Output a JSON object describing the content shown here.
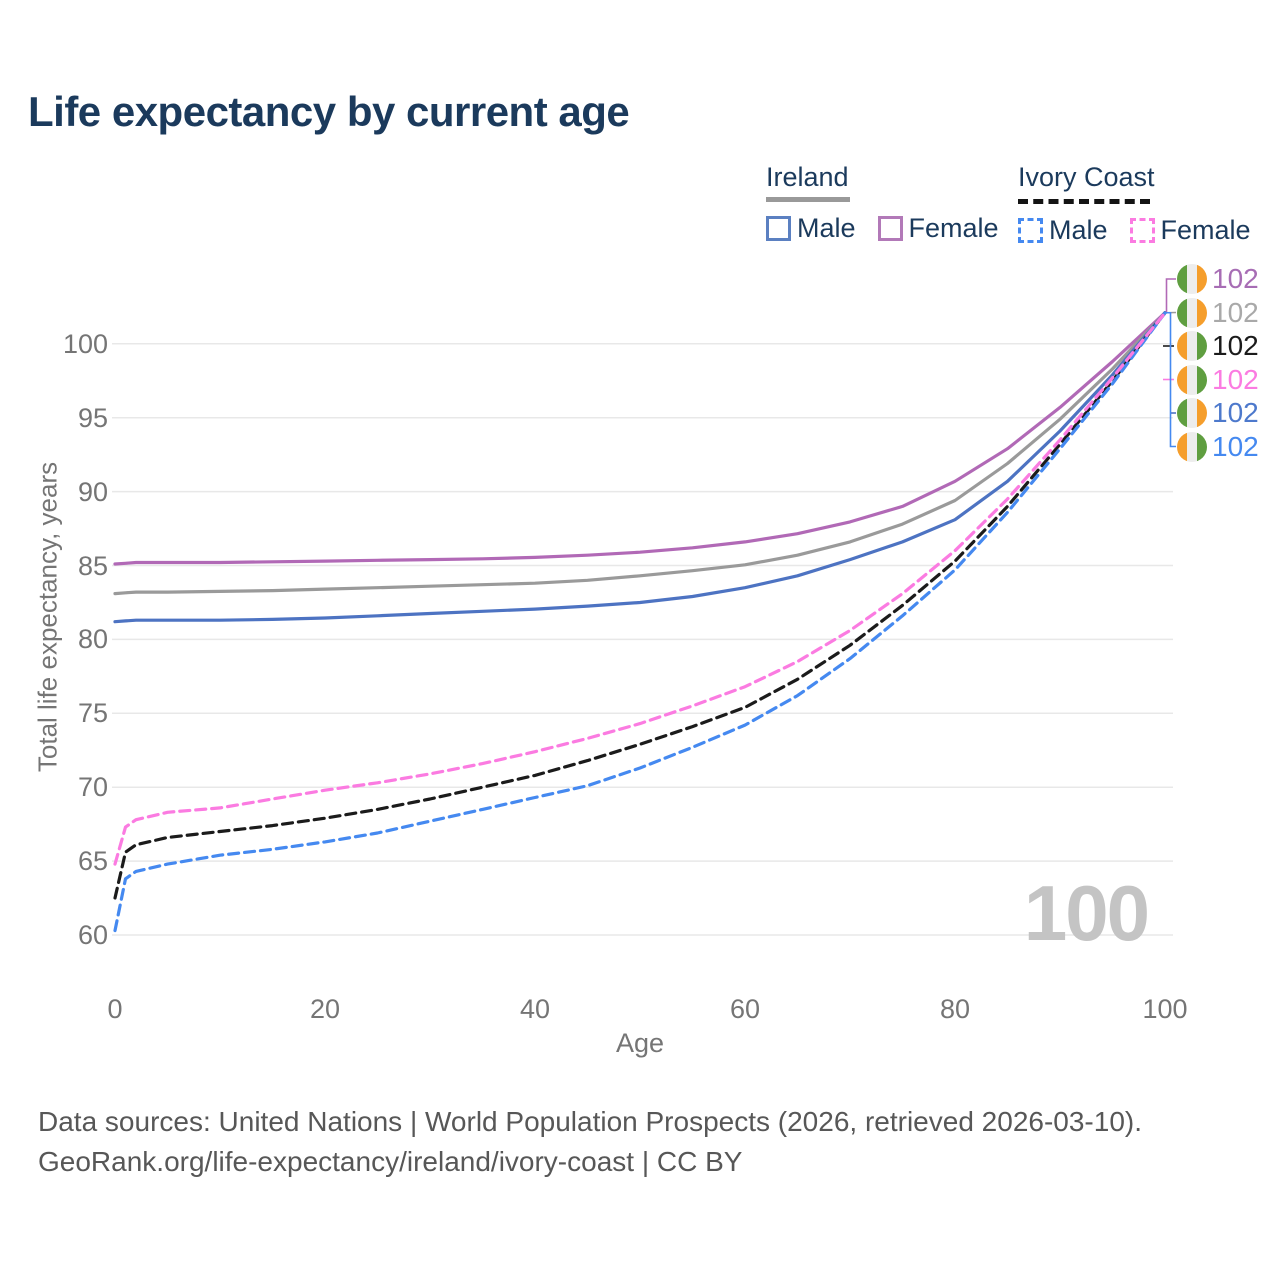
{
  "title": "Life expectancy by current age",
  "legend": {
    "groups": [
      {
        "label": "Ireland",
        "style": "solid",
        "items": [
          {
            "label": "Male"
          },
          {
            "label": "Female"
          }
        ]
      },
      {
        "label": "Ivory Coast",
        "style": "dashed",
        "items": [
          {
            "label": "Male"
          },
          {
            "label": "Female"
          }
        ]
      }
    ]
  },
  "y_axis": {
    "label": "Total life expectancy, years"
  },
  "x_axis": {
    "label": "Age"
  },
  "watermark": "100",
  "end_labels": [
    {
      "value": "102",
      "series": "Ireland Female",
      "flag": "ireland",
      "color": "#a76db4"
    },
    {
      "value": "102",
      "series": "Ireland",
      "flag": "ireland",
      "color": "#a9a9a9"
    },
    {
      "value": "102",
      "series": "Ivory Coast",
      "flag": "ivory-coast",
      "color": "#1b1b1b"
    },
    {
      "value": "102",
      "series": "Ivory Coast Female",
      "flag": "ivory-coast",
      "color": "#fb7be1"
    },
    {
      "value": "102",
      "series": "Ireland Male",
      "flag": "ireland",
      "color": "#4d79cc"
    },
    {
      "value": "102",
      "series": "Ivory Coast Male",
      "flag": "ivory-coast",
      "color": "#4589f0"
    }
  ],
  "footer": {
    "line1": "Data sources: United Nations | World Population Prospects (2026, retrieved 2026-03-10).",
    "line2": "GeoRank.org/life-expectancy/ireland/ivory-coast | CC BY"
  },
  "colors": {
    "title_text": "#1b3a5c",
    "axis_text": "#757575",
    "grid": "#e8e8e8",
    "watermark": "#c4c4c4",
    "ireland_male": "#4d73c2",
    "ireland_female": "#b169b6",
    "ireland_all": "#9a9a9a",
    "ivory_coast_male": "#4589f0",
    "ivory_coast_female": "#fb7be1",
    "ivory_coast_all": "#1b1b1b",
    "flag_green": "#5f9e40",
    "flag_orange": "#f59e2c"
  },
  "chart_data": {
    "type": "line",
    "title": "Life expectancy by current age",
    "xlabel": "Age",
    "ylabel": "Total life expectancy, years",
    "xlim": [
      0,
      100
    ],
    "ylim": [
      60,
      102.5
    ],
    "x_ticks": [
      0,
      20,
      40,
      60,
      80,
      100
    ],
    "y_ticks": [
      60,
      65,
      70,
      75,
      80,
      85,
      90,
      95,
      100
    ],
    "grid": "horizontal",
    "legend_position": "top-right",
    "x": [
      0,
      1,
      2,
      5,
      10,
      15,
      20,
      25,
      30,
      35,
      40,
      45,
      50,
      55,
      60,
      65,
      70,
      75,
      80,
      85,
      90,
      95,
      100
    ],
    "series": [
      {
        "name": "Ireland Female",
        "country": "Ireland",
        "sex": "Female",
        "color": "#b169b6",
        "dash": false,
        "values": [
          85.1,
          85.15,
          85.2,
          85.2,
          85.2,
          85.25,
          85.3,
          85.35,
          85.4,
          85.45,
          85.55,
          85.7,
          85.9,
          86.2,
          86.6,
          87.15,
          87.95,
          89.0,
          90.7,
          92.9,
          95.7,
          98.8,
          102.1
        ]
      },
      {
        "name": "Ireland",
        "country": "Ireland",
        "sex": "Both",
        "color": "#9a9a9a",
        "dash": false,
        "values": [
          83.1,
          83.15,
          83.2,
          83.2,
          83.25,
          83.3,
          83.4,
          83.5,
          83.6,
          83.7,
          83.8,
          84.0,
          84.3,
          84.65,
          85.05,
          85.7,
          86.6,
          87.8,
          89.4,
          91.9,
          94.9,
          98.3,
          102.1
        ]
      },
      {
        "name": "Ireland Male",
        "country": "Ireland",
        "sex": "Male",
        "color": "#4d73c2",
        "dash": false,
        "values": [
          81.2,
          81.25,
          81.3,
          81.3,
          81.3,
          81.35,
          81.45,
          81.6,
          81.75,
          81.9,
          82.05,
          82.25,
          82.5,
          82.9,
          83.5,
          84.3,
          85.4,
          86.6,
          88.1,
          90.7,
          94.1,
          97.9,
          102.1
        ]
      },
      {
        "name": "Ivory Coast",
        "country": "Ivory Coast",
        "sex": "Both",
        "color": "#1b1b1b",
        "dash": true,
        "values": [
          62.5,
          65.6,
          66.1,
          66.6,
          67.0,
          67.4,
          67.9,
          68.5,
          69.2,
          70.0,
          70.8,
          71.8,
          72.9,
          74.1,
          75.4,
          77.3,
          79.6,
          82.3,
          85.3,
          89.0,
          93.2,
          97.5,
          102.1
        ]
      },
      {
        "name": "Ivory Coast Male",
        "country": "Ivory Coast",
        "sex": "Male",
        "color": "#4589f0",
        "dash": true,
        "values": [
          60.3,
          63.8,
          64.3,
          64.8,
          65.4,
          65.8,
          66.3,
          66.9,
          67.7,
          68.5,
          69.3,
          70.1,
          71.3,
          72.7,
          74.2,
          76.2,
          78.7,
          81.6,
          84.7,
          88.6,
          92.9,
          97.3,
          102.1
        ]
      },
      {
        "name": "Ivory Coast Female",
        "country": "Ivory Coast",
        "sex": "Female",
        "color": "#fb7be1",
        "dash": true,
        "values": [
          64.8,
          67.3,
          67.8,
          68.3,
          68.6,
          69.2,
          69.8,
          70.3,
          70.9,
          71.6,
          72.4,
          73.3,
          74.3,
          75.5,
          76.8,
          78.5,
          80.6,
          83.1,
          86.0,
          89.5,
          93.5,
          97.7,
          102.1
        ]
      }
    ],
    "end_value_labels": [
      "102",
      "102",
      "102",
      "102",
      "102",
      "102"
    ]
  }
}
